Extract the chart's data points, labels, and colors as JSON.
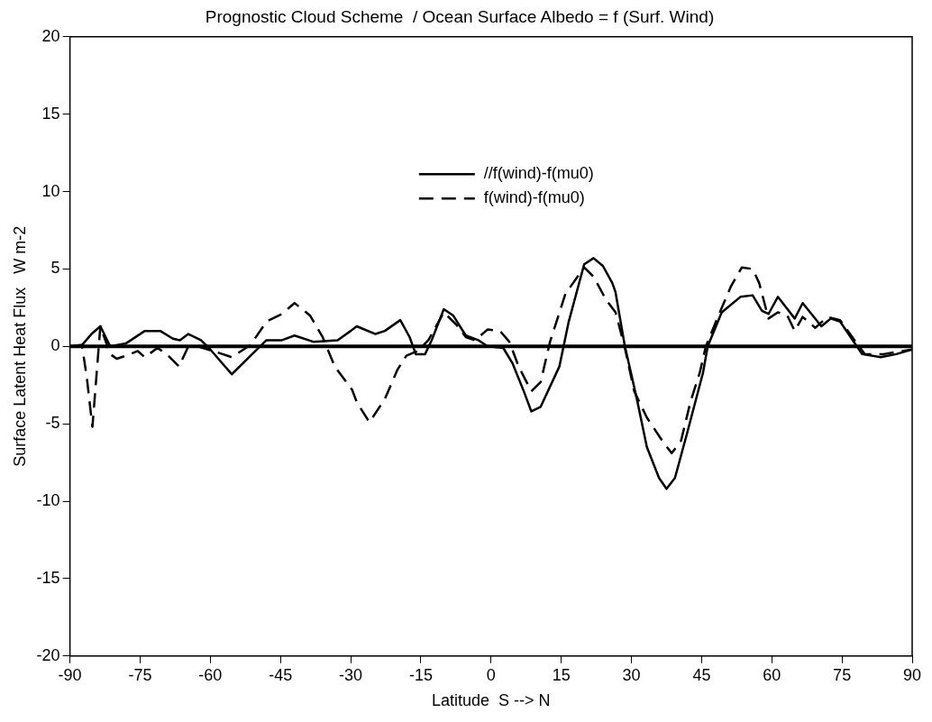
{
  "chart_data": {
    "type": "line",
    "title": "Prognostic Cloud Scheme  / Ocean Surface Albedo = f (Surf. Wind)",
    "xlabel": "Latitude  S --> N",
    "ylabel": "Surface Latent Heat Flux   W m-2",
    "xlim": [
      -90,
      90
    ],
    "xticks": [
      -90,
      -75,
      -60,
      -45,
      -30,
      -15,
      0,
      15,
      30,
      45,
      60,
      75,
      90
    ],
    "ylim": [
      -20,
      20
    ],
    "yticks": [
      -20,
      -15,
      -10,
      -5,
      0,
      5,
      10,
      15,
      20
    ],
    "grid": false,
    "legend": "top",
    "marker": "none",
    "ref_lines": [
      {
        "axis": "y",
        "value": 0
      }
    ],
    "series": [
      {
        "name": "//f(wind)-f(mu0)",
        "color": "#000000",
        "line_style": "solid",
        "x": [
          -90,
          -87.4,
          -85.4,
          -83.5,
          -81.4,
          -78,
          -74,
          -70.7,
          -68,
          -66.5,
          -64.7,
          -62,
          -60,
          -55.4,
          -51.4,
          -48,
          -44.7,
          -42,
          -38,
          -32.8,
          -30,
          -28.7,
          -24.7,
          -22.7,
          -19.4,
          -17.4,
          -16.1,
          -14.1,
          -12.7,
          -10.1,
          -8.1,
          -5.4,
          -2.7,
          -0.7,
          2.6,
          4.6,
          7,
          8.6,
          10.6,
          14.6,
          16.6,
          19.9,
          21.9,
          23.9,
          25.9,
          26.6,
          28.6,
          29.9,
          31.3,
          33.3,
          35.9,
          37.5,
          39.3,
          41.9,
          45.3,
          46.3,
          49.3,
          53.3,
          55.9,
          57.9,
          59.3,
          61.3,
          64.9,
          66.6,
          70.6,
          72.6,
          74.6,
          77.3,
          79.3,
          83.3,
          86.6,
          90
        ],
        "values": [
          0,
          0.1,
          0.8,
          1.3,
          0,
          0.2,
          1,
          1,
          0.5,
          0.4,
          0.8,
          0.4,
          -0.2,
          -1.8,
          -0.6,
          0.4,
          0.4,
          0.7,
          0.3,
          0.4,
          1,
          1.3,
          0.8,
          1,
          1.7,
          0.6,
          -0.5,
          -0.5,
          0.4,
          2.4,
          2,
          0.7,
          0.4,
          0,
          -0.1,
          -1.1,
          -2.9,
          -4.2,
          -3.9,
          -1.3,
          1.6,
          5.3,
          5.7,
          5.2,
          4.1,
          3.5,
          0,
          -1.7,
          -3.6,
          -6.5,
          -8.5,
          -9.2,
          -8.5,
          -5.6,
          -1.7,
          0,
          2.2,
          3.2,
          3.3,
          2.3,
          2.1,
          3.2,
          1.8,
          2.8,
          1.3,
          1.8,
          1.6,
          0.4,
          -0.5,
          -0.7,
          -0.5,
          -0.2
        ]
      },
      {
        "name": "f(wind)-f(mu0)",
        "color": "#000000",
        "line_style": "dashed",
        "x": [
          -90,
          -87.4,
          -86.4,
          -85.2,
          -83.5,
          -81.4,
          -80,
          -78,
          -75.5,
          -74,
          -71.3,
          -69.3,
          -66.7,
          -64.7,
          -62.7,
          -59.4,
          -55.4,
          -51.4,
          -48,
          -44.7,
          -42,
          -38.7,
          -36,
          -33.4,
          -29.7,
          -28.7,
          -26,
          -22.7,
          -20,
          -18.1,
          -15.7,
          -13.4,
          -10.1,
          -7.4,
          -5.4,
          -3.4,
          -0.7,
          1.9,
          3.9,
          5.9,
          8.6,
          10.6,
          12.6,
          15.9,
          19.9,
          21.9,
          24.6,
          26.6,
          28.6,
          30.6,
          33.3,
          36.6,
          38.6,
          40.6,
          42.6,
          44.6,
          45.9,
          48.6,
          51.3,
          53.6,
          55.9,
          57.3,
          59.3,
          61.3,
          63.3,
          64.9,
          66.6,
          69.3,
          71.9,
          74.6,
          77.9,
          79.9,
          83.9,
          87.9,
          90
        ],
        "values": [
          0,
          0,
          -2,
          -5.2,
          1.3,
          -0.5,
          -0.8,
          -0.6,
          -0.3,
          -0.7,
          -0.1,
          -0.5,
          -1.3,
          0,
          0,
          -0.3,
          -0.7,
          0.1,
          1.6,
          2.1,
          2.8,
          2,
          0.6,
          -1.3,
          -2.8,
          -3.6,
          -4.9,
          -3.4,
          -1.5,
          -0.6,
          -0.3,
          0.4,
          2.2,
          1.4,
          0.6,
          0.4,
          1.1,
          1,
          0.3,
          -1.3,
          -2.9,
          -2.3,
          0.3,
          3.4,
          5.1,
          4.5,
          3,
          2.2,
          -0.1,
          -2.9,
          -4.6,
          -6.1,
          -6.9,
          -6.1,
          -3.6,
          -1.7,
          0,
          2,
          3.9,
          5.1,
          5,
          4.1,
          1.8,
          2.2,
          2,
          1,
          1.9,
          1.2,
          1.9,
          1.7,
          0.3,
          -0.5,
          -0.5,
          -0.3,
          -0.2
        ]
      }
    ]
  }
}
